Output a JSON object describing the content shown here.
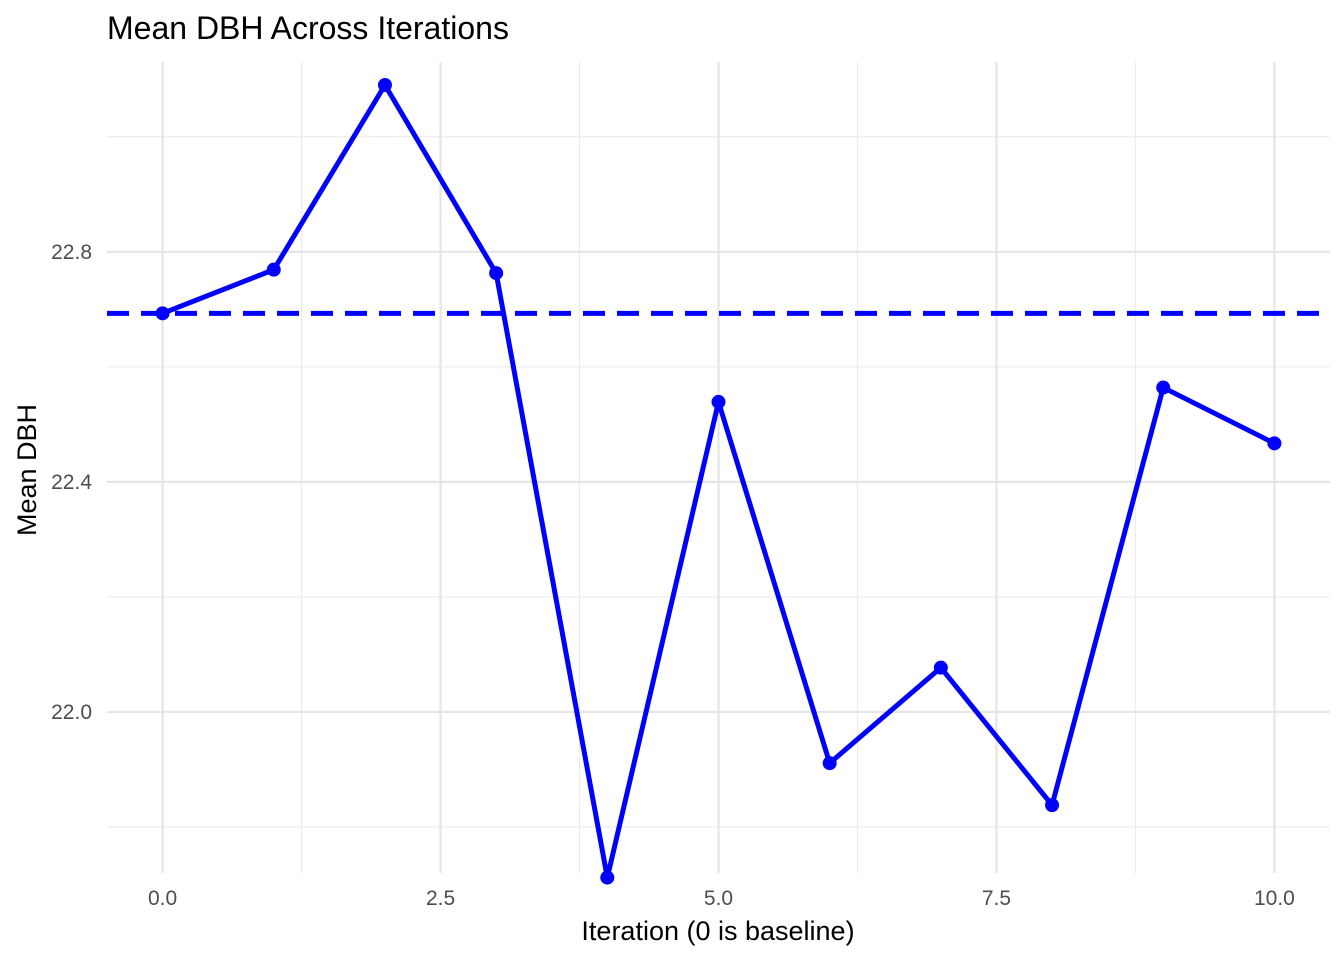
{
  "chart_data": {
    "type": "line",
    "title": "Mean DBH Across Iterations",
    "xlabel": "Iteration (0 is baseline)",
    "ylabel": "Mean DBH",
    "xlim": [
      -0.5,
      10.5
    ],
    "ylim": [
      21.72,
      23.13
    ],
    "x_ticks": [
      0.0,
      2.5,
      5.0,
      7.5,
      10.0
    ],
    "x_tick_labels": [
      "0.0",
      "2.5",
      "5.0",
      "7.5",
      "10.0"
    ],
    "x_minor_ticks": [
      1.25,
      3.75,
      6.25,
      8.75
    ],
    "y_ticks": [
      22.0,
      22.4,
      22.8
    ],
    "y_tick_labels": [
      "22.0",
      "22.4",
      "22.8"
    ],
    "y_minor_ticks": [
      21.8,
      22.2,
      22.6,
      23.0
    ],
    "grid": true,
    "legend": "none",
    "series": [
      {
        "x": [
          0,
          1,
          2,
          3,
          4,
          5,
          6,
          7,
          8,
          9,
          10
        ],
        "values": [
          22.693,
          22.769,
          23.09,
          22.763,
          21.712,
          22.539,
          21.911,
          22.077,
          21.838,
          22.564,
          22.467
        ],
        "color": "#0000ff"
      }
    ],
    "reference_line": {
      "type": "horizontal",
      "y": 22.693,
      "style": "dashed",
      "color": "#0000ff"
    }
  }
}
